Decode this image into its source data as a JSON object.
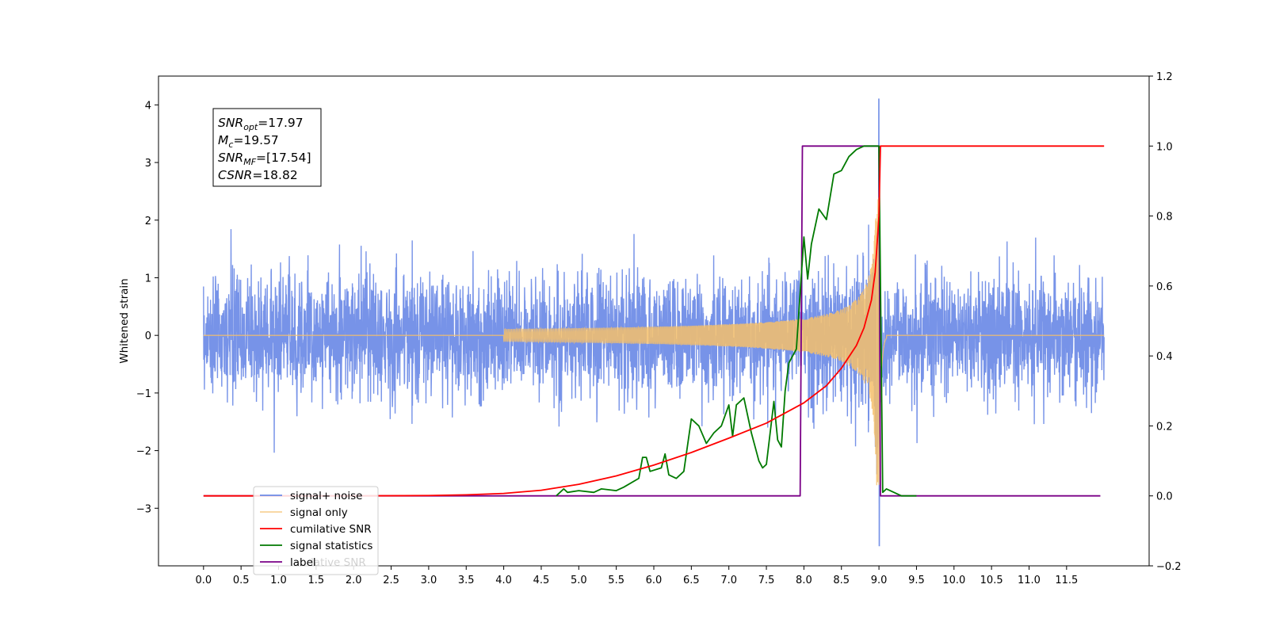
{
  "chart_data": {
    "type": "line",
    "title": "",
    "xlabel": "",
    "ylabel": "Whitened strain",
    "y2label": "",
    "xlim": [
      -0.6,
      12.6
    ],
    "ylim": [
      -4.0,
      4.5
    ],
    "y2lim": [
      -0.2,
      1.2
    ],
    "xticks": [
      "0.0",
      "0.5",
      "1.0",
      "1.5",
      "2.0",
      "2.5",
      "3.0",
      "3.5",
      "4.0",
      "4.5",
      "5.0",
      "5.5",
      "6.0",
      "6.5",
      "7.0",
      "7.5",
      "8.0",
      "8.5",
      "9.0",
      "9.5",
      "10.0",
      "10.5",
      "11.0",
      "11.5"
    ],
    "yticks": [
      "−3",
      "−2",
      "−1",
      "0",
      "1",
      "2",
      "3",
      "4"
    ],
    "y2ticks": [
      "−0.2",
      "0.0",
      "0.2",
      "0.4",
      "0.6",
      "0.8",
      "1.0",
      "1.2"
    ],
    "grid": false,
    "legend_position": "lower-left",
    "colors": {
      "noise": "#6b8ae6",
      "signal": "#f5bf6b",
      "cumulative": "#ff0000",
      "statistics": "#007a00",
      "label": "#7a0087"
    },
    "annotation": {
      "snr_opt": {
        "sym": "SNR",
        "sub": "opt",
        "value": "=17.97"
      },
      "mc": {
        "sym": "M",
        "sub": "c",
        "value": "=19.57"
      },
      "snr_mf": {
        "sym": "SNR",
        "sub": "MF",
        "value": "=[17.54]"
      },
      "csnr": {
        "sym": "CSNR",
        "value": "=18.82"
      }
    },
    "legend": [
      {
        "key": "noise",
        "name": "signal+ noise"
      },
      {
        "key": "signal",
        "name": "signal only"
      },
      {
        "key": "cumulative",
        "name": "cumilative SNR"
      },
      {
        "key": "statistics",
        "name": "signal statistics"
      },
      {
        "key": "label",
        "name": "label",
        "ghost": "lative SNR"
      }
    ],
    "series": {
      "signal_plus_noise": {
        "axis": "left",
        "x_range": [
          0.0,
          12.0
        ],
        "approx_amplitude": 1.5,
        "peak": [
          9.0,
          4.1
        ],
        "trough": [
          9.0,
          -3.65
        ]
      },
      "signal_only": {
        "axis": "left",
        "x_range": [
          0.0,
          12.0
        ],
        "merger_time": 9.0,
        "peak_amplitude": 2.6
      },
      "cumulative_snr": {
        "axis": "right",
        "x": [
          0.0,
          2.0,
          3.0,
          3.5,
          4.0,
          4.5,
          5.0,
          5.5,
          6.0,
          6.5,
          7.0,
          7.5,
          8.0,
          8.3,
          8.5,
          8.7,
          8.8,
          8.9,
          8.95,
          9.0,
          9.02,
          12.0
        ],
        "y": [
          0.0,
          0.0,
          0.001,
          0.003,
          0.007,
          0.016,
          0.033,
          0.057,
          0.088,
          0.124,
          0.165,
          0.208,
          0.266,
          0.315,
          0.365,
          0.43,
          0.48,
          0.56,
          0.64,
          0.8,
          1.0,
          1.0
        ]
      },
      "signal_statistics": {
        "axis": "right",
        "x": [
          4.7,
          4.8,
          4.85,
          5.0,
          5.2,
          5.3,
          5.5,
          5.6,
          5.8,
          5.85,
          5.9,
          5.95,
          6.1,
          6.15,
          6.2,
          6.3,
          6.4,
          6.5,
          6.6,
          6.7,
          6.8,
          6.9,
          7.0,
          7.05,
          7.1,
          7.2,
          7.3,
          7.4,
          7.45,
          7.5,
          7.6,
          7.65,
          7.7,
          7.75,
          7.8,
          7.9,
          8.0,
          8.05,
          8.1,
          8.2,
          8.3,
          8.4,
          8.5,
          8.6,
          8.7,
          8.8,
          8.9,
          9.0,
          9.05,
          9.1,
          9.2,
          9.3,
          9.5
        ],
        "y": [
          0.0,
          0.02,
          0.01,
          0.015,
          0.01,
          0.02,
          0.015,
          0.025,
          0.05,
          0.11,
          0.11,
          0.07,
          0.08,
          0.12,
          0.06,
          0.05,
          0.07,
          0.22,
          0.2,
          0.15,
          0.18,
          0.2,
          0.26,
          0.17,
          0.26,
          0.28,
          0.18,
          0.1,
          0.08,
          0.09,
          0.27,
          0.16,
          0.14,
          0.3,
          0.38,
          0.42,
          0.74,
          0.62,
          0.72,
          0.82,
          0.79,
          0.92,
          0.93,
          0.97,
          0.99,
          1.0,
          1.0,
          1.0,
          0.01,
          0.02,
          0.01,
          0.0,
          0.0
        ]
      },
      "label": {
        "axis": "right",
        "x": [
          0.0,
          7.95,
          7.98,
          9.0,
          9.02,
          11.95
        ],
        "y": [
          0.0,
          0.0,
          1.0,
          1.0,
          0.0,
          0.0
        ]
      }
    }
  }
}
